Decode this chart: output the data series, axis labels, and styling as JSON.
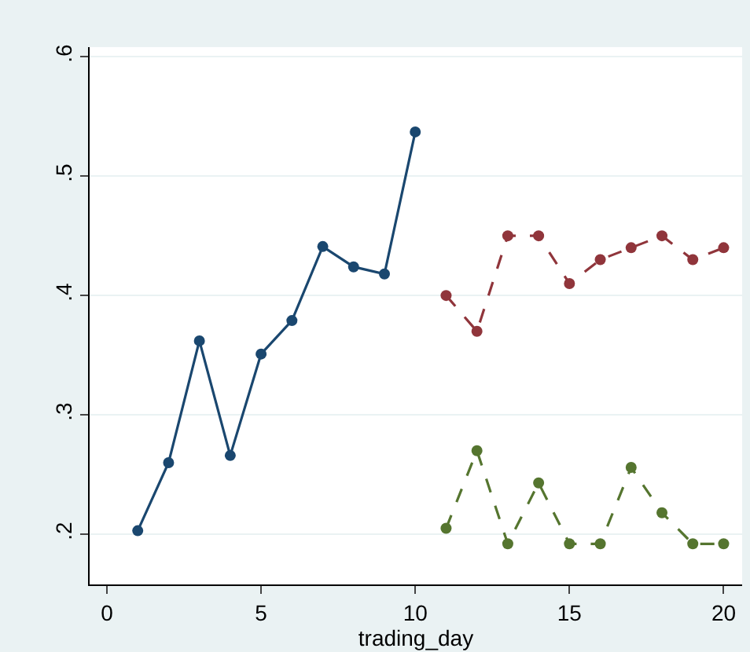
{
  "chart_data": {
    "type": "line",
    "xlabel": "trading_day",
    "x": [
      1,
      2,
      3,
      4,
      5,
      6,
      7,
      8,
      9,
      10,
      11,
      12,
      13,
      14,
      15,
      16,
      17,
      18,
      19,
      20
    ],
    "series": [
      {
        "color": "#1a476f",
        "line_style": "solid",
        "values": [
          0.203,
          0.26,
          0.362,
          0.266,
          0.351,
          0.379,
          0.441,
          0.424,
          0.418,
          0.537,
          null,
          null,
          null,
          null,
          null,
          null,
          null,
          null,
          null,
          null
        ]
      },
      {
        "color": "#90353b",
        "line_style": "dashed",
        "values": [
          null,
          null,
          null,
          null,
          null,
          null,
          null,
          null,
          null,
          null,
          0.4,
          0.37,
          0.45,
          0.45,
          0.41,
          0.43,
          0.44,
          0.45,
          0.43,
          0.44
        ]
      },
      {
        "color": "#55752f",
        "line_style": "dashed",
        "values": [
          null,
          null,
          null,
          null,
          null,
          null,
          null,
          null,
          null,
          null,
          0.205,
          0.27,
          0.192,
          0.243,
          0.192,
          0.192,
          0.256,
          0.218,
          0.192,
          0.192
        ]
      }
    ],
    "xlim": [
      -0.56,
      20.6
    ],
    "xticks": [
      0,
      5,
      10,
      15,
      20
    ],
    "ylim": [
      0.158,
      0.608
    ],
    "yticks": [
      {
        "value": 0.2,
        "label": ".2"
      },
      {
        "value": 0.3,
        "label": ".3"
      },
      {
        "value": 0.4,
        "label": ".4"
      },
      {
        "value": 0.5,
        "label": ".5"
      },
      {
        "value": 0.6,
        "label": ".6"
      }
    ],
    "grid": "y",
    "marker": "circle"
  }
}
